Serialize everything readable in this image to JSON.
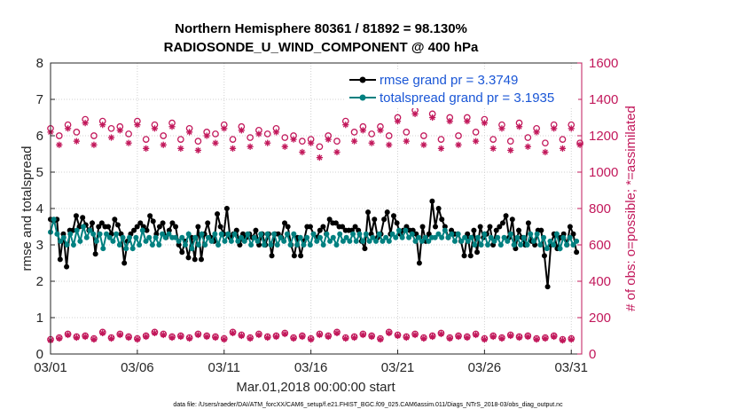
{
  "chart_data": {
    "type": "line",
    "title_line1": "Northern Hemisphere 80361 / 81892 = 98.130%",
    "title_line2": "RADIOSONDE_U_WIND_COMPONENT @ 400 hPa",
    "xlabel": "Mar.01,2018 00:00:00 start",
    "ylabel": "rmse and totalspread",
    "ylabel_right": "# of obs: o=possible; *=assimilated",
    "xlim": [
      0,
      30.6
    ],
    "ylim": [
      0,
      8
    ],
    "ylim_right": [
      0,
      1600
    ],
    "xticks": [
      0,
      5,
      10,
      15,
      20,
      25,
      30
    ],
    "xtick_labels": [
      "03/01",
      "03/06",
      "03/11",
      "03/16",
      "03/21",
      "03/26",
      "03/31"
    ],
    "yticks": [
      0,
      1,
      2,
      3,
      4,
      5,
      6,
      7,
      8
    ],
    "ytick_labels": [
      "0",
      "1",
      "2",
      "3",
      "4",
      "5",
      "6",
      "7",
      "8"
    ],
    "yticks_right": [
      0,
      200,
      400,
      600,
      800,
      1000,
      1200,
      1400,
      1600
    ],
    "ytick_right_labels": [
      "0",
      "200",
      "400",
      "600",
      "800",
      "1000",
      "1200",
      "1400",
      "1600"
    ],
    "legend": [
      "rmse grand pr = 3.3749",
      "totalspread grand pr = 3.1935"
    ],
    "colors": {
      "rmse": "#000000",
      "totalspread": "#008080",
      "obs": "#c2185b",
      "legend_text": "#1a56d6"
    },
    "footer": "data file: /Users/raeder/DAI/ATM_forcXX/CAM6_setup/f.e21.FHIST_BGC.f09_025.CAM6assim.011/Diags_NTrS_2018-03/obs_diag_output.nc",
    "rmse": [
      3.7,
      3.65,
      3.7,
      2.6,
      3.3,
      2.4,
      3.4,
      3.4,
      3.8,
      3.5,
      3.75,
      3.55,
      3.4,
      3.6,
      2.75,
      3.5,
      3.6,
      3.5,
      3.5,
      3.3,
      3.7,
      3.55,
      3.3,
      2.5,
      3.1,
      3.3,
      3.4,
      3.5,
      3.6,
      3.5,
      3.4,
      3.8,
      3.65,
      3.3,
      3.5,
      3.6,
      3.2,
      3.4,
      3.6,
      3.5,
      3.0,
      2.8,
      3.1,
      2.65,
      3.2,
      2.6,
      3.5,
      2.6,
      3.3,
      3.6,
      3.2,
      3.1,
      3.85,
      3.5,
      3.3,
      4.0,
      3.2,
      3.3,
      3.4,
      3.0,
      3.3,
      3.2,
      3.3,
      3.2,
      3.4,
      3.0,
      3.3,
      3.0,
      3.3,
      2.7,
      3.3,
      3.3,
      3.2,
      3.6,
      3.5,
      3.0,
      2.7,
      3.2,
      2.7,
      3.1,
      3.5,
      3.5,
      3.3,
      3.2,
      3.4,
      3.5,
      3.3,
      3.7,
      3.6,
      3.6,
      3.5,
      3.5,
      3.4,
      3.4,
      3.4,
      3.5,
      3.4,
      3.1,
      2.9,
      3.9,
      3.3,
      3.7,
      3.2,
      3.3,
      3.7,
      3.9,
      3.3,
      3.8,
      3.6,
      3.3,
      3.4,
      3.5,
      3.4,
      3.4,
      3.3,
      2.5,
      3.5,
      3.1,
      3.3,
      4.2,
      3.5,
      4.0,
      3.7,
      3.5,
      3.2,
      3.4,
      3.3,
      3.3,
      3.1,
      2.7,
      3.3,
      2.7,
      3.4,
      2.8,
      3.5,
      3.2,
      3.3,
      3.5,
      3.0,
      3.4,
      3.5,
      3.6,
      3.8,
      3.2,
      3.7,
      2.9,
      3.4,
      3.2,
      3.0,
      3.6,
      3.1,
      3.0,
      3.4,
      3.4,
      2.7,
      1.85,
      3.0,
      3.3,
      2.9,
      3.2,
      3.3,
      3.0,
      3.5,
      3.3,
      2.8
    ],
    "totalspread": [
      3.35,
      3.7,
      3.3,
      3.1,
      3.2,
      3.0,
      3.3,
      3.0,
      3.4,
      3.1,
      3.5,
      3.2,
      3.4,
      3.3,
      3.1,
      3.3,
      2.9,
      3.3,
      3.2,
      3.1,
      3.3,
      3.0,
      3.2,
      2.9,
      3.2,
      2.9,
      3.2,
      3.0,
      3.4,
      3.1,
      3.2,
      3.0,
      3.2,
      3.0,
      3.3,
      3.2,
      3.3,
      3.2,
      3.2,
      3.1,
      3.2,
      3.0,
      3.3,
      2.9,
      3.2,
      3.0,
      3.3,
      3.0,
      3.2,
      3.1,
      3.3,
      3.0,
      3.3,
      3.1,
      3.3,
      3.1,
      3.3,
      3.1,
      3.2,
      3.1,
      3.3,
      3.0,
      3.2,
      3.1,
      3.3,
      3.0,
      3.3,
      3.0,
      3.3,
      3.0,
      3.2,
      3.1,
      3.3,
      3.0,
      3.3,
      3.0,
      3.2,
      3.0,
      3.2,
      3.0,
      3.3,
      3.1,
      3.2,
      3.0,
      3.3,
      3.1,
      3.2,
      3.0,
      3.3,
      3.1,
      3.2,
      3.1,
      3.3,
      3.1,
      3.3,
      3.1,
      3.3,
      3.1,
      3.2,
      3.1,
      3.3,
      3.1,
      3.2,
      3.1,
      3.3,
      3.2,
      3.4,
      3.2,
      3.4,
      3.2,
      3.3,
      3.1,
      3.2,
      3.1,
      3.2,
      3.1,
      3.2,
      3.2,
      3.3,
      3.2,
      3.4,
      3.2,
      3.3,
      3.1,
      3.3,
      3.1,
      3.2,
      3.1,
      3.2,
      3.0,
      3.2,
      3.0,
      3.3,
      3.0,
      3.2,
      3.1,
      3.2,
      3.0,
      3.2,
      3.1,
      3.3,
      3.0,
      3.2,
      3.0,
      3.2,
      3.0,
      3.3,
      3.1,
      3.3,
      3.0,
      3.2,
      2.9,
      3.1,
      3.0,
      3.3,
      2.9,
      3.2,
      3.0,
      3.2,
      3.0,
      3.1
    ],
    "obs_possible_00z": [
      1240,
      1260,
      1290,
      1280,
      1250,
      1280,
      1260,
      1270,
      1240,
      1220,
      1260,
      1250,
      1230,
      1240,
      1200,
      1180,
      1200,
      1280,
      1250,
      1250,
      1300,
      1340,
      1320,
      1300,
      1300,
      1290,
      1260,
      1270,
      1240,
      1260,
      1260
    ],
    "obs_possible_12z": [
      1200,
      1220,
      1200,
      1240,
      1210,
      1180,
      1200,
      1180,
      1170,
      1210,
      1180,
      1190,
      1210,
      1190,
      1170,
      1140,
      1170,
      1220,
      1210,
      1200,
      1220,
      1200,
      1180,
      1200,
      1220,
      1180,
      1170,
      1190,
      1160,
      1180,
      1160
    ],
    "obs_assimilated_00z": [
      1220,
      1240,
      1270,
      1260,
      1230,
      1260,
      1240,
      1250,
      1220,
      1200,
      1240,
      1230,
      1210,
      1220,
      1180,
      1160,
      1180,
      1260,
      1230,
      1230,
      1280,
      1320,
      1300,
      1280,
      1280,
      1270,
      1240,
      1250,
      1220,
      1240,
      1240
    ],
    "obs_assimilated_12z": [
      1150,
      1170,
      1150,
      1190,
      1160,
      1130,
      1150,
      1130,
      1120,
      1160,
      1130,
      1140,
      1160,
      1140,
      1110,
      1080,
      1110,
      1170,
      1160,
      1150,
      1170,
      1150,
      1130,
      1150,
      1170,
      1130,
      1120,
      1140,
      1110,
      1130,
      1150
    ],
    "obs_low_possible": [
      80,
      90,
      110,
      95,
      100,
      85,
      120,
      90,
      110,
      95,
      85,
      100,
      120,
      110,
      95,
      100,
      90,
      110,
      100,
      95,
      85,
      120,
      105,
      90,
      110,
      95,
      100,
      115,
      90,
      100,
      85,
      110,
      100,
      120,
      90,
      95,
      110,
      100,
      85,
      120,
      105,
      95,
      110,
      90,
      100,
      115,
      90,
      100,
      95,
      110,
      85,
      100,
      90,
      105,
      95,
      100,
      85,
      90,
      100,
      80,
      85
    ],
    "obs_low_assimilated": [
      75,
      85,
      105,
      90,
      95,
      80,
      115,
      85,
      105,
      90,
      80,
      95,
      115,
      105,
      90,
      95,
      85,
      105,
      95,
      90,
      80,
      115,
      100,
      85,
      105,
      90,
      95,
      110,
      85,
      95,
      80,
      105,
      95,
      115,
      85,
      90,
      105,
      95,
      80,
      115,
      100,
      90,
      105,
      85,
      95,
      110,
      85,
      95,
      90,
      105,
      80,
      95,
      85,
      100,
      90,
      95,
      80,
      85,
      95,
      75,
      80
    ]
  }
}
